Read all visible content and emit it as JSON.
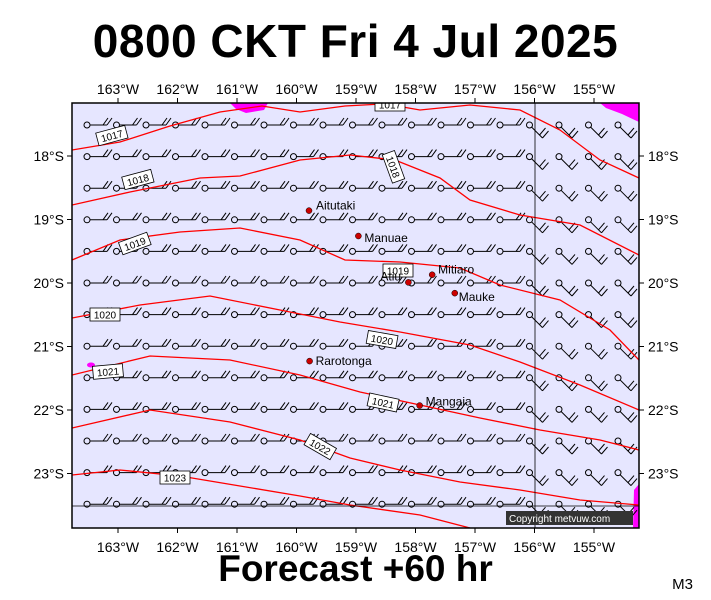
{
  "title": "0800 CKT Fri 4 Jul 2025",
  "footer": "Forecast +60 hr",
  "model_code": "M3",
  "copyright": "Copyright metvuw.com",
  "colors": {
    "ocean": "#e6e6ff",
    "isobar": "#ff0000",
    "rain": "#ff00ff",
    "island": "#cc0000"
  },
  "axes": {
    "lon_ticks": [
      "163°W",
      "162°W",
      "161°W",
      "160°W",
      "159°W",
      "158°W",
      "157°W",
      "156°W",
      "155°W"
    ],
    "lat_ticks": [
      "18°S",
      "19°S",
      "20°S",
      "21°S",
      "22°S",
      "23°S"
    ]
  },
  "places": [
    {
      "name": "Aitutaki",
      "lon": -159.79,
      "lat": -18.86
    },
    {
      "name": "Manuae",
      "lon": -158.96,
      "lat": -19.26
    },
    {
      "name": "Mitiaro",
      "lon": -157.72,
      "lat": -19.87
    },
    {
      "name": "Atiu",
      "lon": -158.12,
      "lat": -19.99
    },
    {
      "name": "Mauke",
      "lon": -157.34,
      "lat": -20.16
    },
    {
      "name": "Rarotonga",
      "lon": -159.78,
      "lat": -21.23
    },
    {
      "name": "Mangaia",
      "lon": -157.93,
      "lat": -21.93
    }
  ],
  "isobar_labels": [
    "1017",
    "1017",
    "1018",
    "1018",
    "1019",
    "1019",
    "1020",
    "1020",
    "1021",
    "1021",
    "1022",
    "1023"
  ]
}
